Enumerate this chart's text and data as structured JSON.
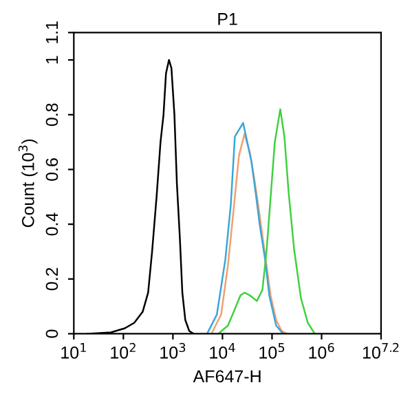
{
  "chart_data": {
    "type": "line",
    "title": "P1",
    "xlabel": "AF647-H",
    "ylabel": "Count (10$^{3}$)",
    "log": "x",
    "xlim": [
      10,
      15849000
    ],
    "ylim": [
      0,
      1.1
    ],
    "xticks": [
      {
        "value": 10,
        "label": "10$^{1}$"
      },
      {
        "value": 100,
        "label": "10$^{2}$"
      },
      {
        "value": 1000,
        "label": "10$^{3}$"
      },
      {
        "value": 10000,
        "label": "10$^{4}$"
      },
      {
        "value": 100000,
        "label": "10$^{5}$"
      },
      {
        "value": 1000000,
        "label": "10$^{6}$"
      },
      {
        "value": 15849000,
        "label": "10$^{7.2}$"
      }
    ],
    "yticks": [
      0,
      0.2,
      0.4,
      0.6,
      0.8,
      1,
      1.1
    ],
    "grid": false,
    "legend": false,
    "series": [
      {
        "color": "#000000",
        "x": [
          19,
          56,
          107,
          166,
          245,
          316,
          380,
          468,
          562,
          646,
          724,
          832,
          933,
          1072,
          1202,
          1380,
          1549,
          1778,
          2138,
          2630
        ],
        "values": [
          0,
          0.005,
          0.02,
          0.04,
          0.08,
          0.15,
          0.3,
          0.5,
          0.7,
          0.8,
          0.95,
          1.0,
          0.97,
          0.8,
          0.55,
          0.35,
          0.15,
          0.05,
          0.01,
          0
        ]
      },
      {
        "color": "#f0a070",
        "x": [
          6000,
          9400,
          12900,
          16700,
          21500,
          27800,
          35900,
          43500,
          52700,
          63900,
          77400,
          93800,
          121100,
          156400,
          202200
        ],
        "values": [
          0,
          0.07,
          0.25,
          0.45,
          0.65,
          0.73,
          0.66,
          0.57,
          0.47,
          0.36,
          0.25,
          0.14,
          0.05,
          0.01,
          0
        ]
      },
      {
        "color": "#3aa6d8",
        "x": [
          4900,
          7700,
          11400,
          14700,
          17800,
          26100,
          38300,
          46400,
          56200,
          72600,
          88000,
          121100,
          166800
        ],
        "values": [
          0,
          0.07,
          0.27,
          0.47,
          0.72,
          0.77,
          0.63,
          0.52,
          0.4,
          0.27,
          0.14,
          0.03,
          0
        ]
      },
      {
        "color": "#40d040",
        "x": [
          8250,
          12900,
          17800,
          23000,
          27800,
          35900,
          49500,
          63900,
          77400,
          93800,
          113700,
          146800,
          177800,
          215400,
          278300,
          383100,
          527200,
          726200
        ],
        "values": [
          0,
          0.03,
          0.09,
          0.14,
          0.15,
          0.14,
          0.12,
          0.16,
          0.3,
          0.5,
          0.7,
          0.82,
          0.72,
          0.52,
          0.31,
          0.13,
          0.04,
          0
        ]
      }
    ]
  }
}
